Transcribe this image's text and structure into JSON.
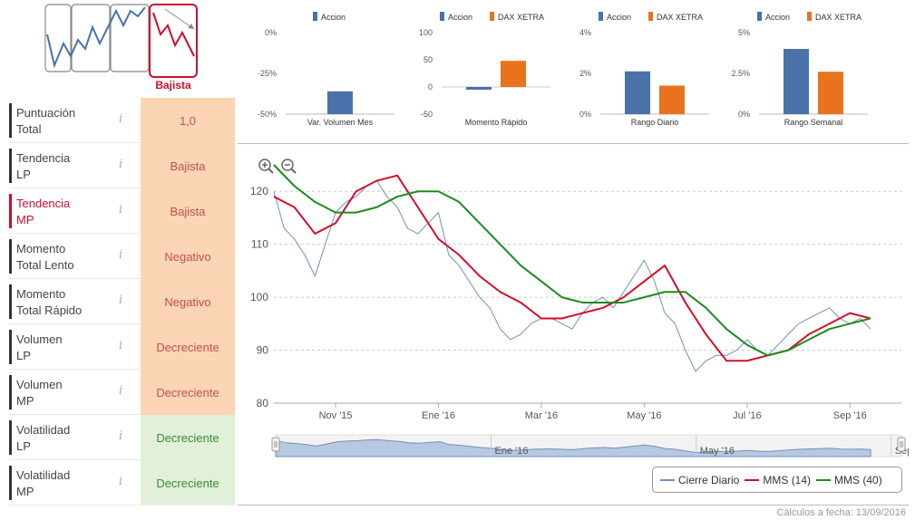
{
  "badge": {
    "label": "Bajista",
    "color": "#c8102e"
  },
  "rows": [
    {
      "line1": "Puntuación",
      "line2": "Total",
      "value": "1,0",
      "style": "neutral",
      "active": false
    },
    {
      "line1": "Tendencia",
      "line2": "LP",
      "value": "Bajista",
      "style": "orange",
      "active": false
    },
    {
      "line1": "Tendencia",
      "line2": "MP",
      "value": "Bajista",
      "style": "orange",
      "active": true
    },
    {
      "line1": "Momento",
      "line2": "Total Lento",
      "value": "Negativo",
      "style": "orange",
      "active": false
    },
    {
      "line1": "Momento",
      "line2": "Total Rápido",
      "value": "Negativo",
      "style": "orange",
      "active": false
    },
    {
      "line1": "Volumen",
      "line2": "LP",
      "value": "Decreciente",
      "style": "orange",
      "active": false
    },
    {
      "line1": "Volumen",
      "line2": "MP",
      "value": "Decreciente",
      "style": "orange",
      "active": false
    },
    {
      "line1": "Volatilidad",
      "line2": "LP",
      "value": "Decreciente",
      "style": "green",
      "active": false
    },
    {
      "line1": "Volatilidad",
      "line2": "MP",
      "value": "Decreciente",
      "style": "green",
      "active": false
    }
  ],
  "info_glyph": "i",
  "colors": {
    "accion": "#4a72a8",
    "dax": "#e8731c",
    "sma14": "#d0102a",
    "sma40": "#1e8a1e",
    "close": "#7090bb"
  },
  "mini_charts": [
    {
      "title": "Var. Volumen Mes",
      "legend": [
        "Accion"
      ],
      "ticks": [
        "0%",
        "-25%",
        "-50%"
      ],
      "tick_values": [
        0,
        -25,
        -50
      ],
      "values": [
        -36
      ],
      "ylim": [
        -50,
        0
      ]
    },
    {
      "title": "Momento Rápido",
      "legend": [
        "Accion",
        "DAX XETRA"
      ],
      "ticks": [
        "100",
        "50",
        "0",
        "-50"
      ],
      "tick_values": [
        100,
        50,
        0,
        -50
      ],
      "values": [
        -5,
        48
      ],
      "ylim": [
        -50,
        100
      ]
    },
    {
      "title": "Rango Diario",
      "legend": [
        "Accion",
        "DAX XETRA"
      ],
      "ticks": [
        "4%",
        "2%",
        "0%"
      ],
      "tick_values": [
        4,
        2,
        0
      ],
      "values": [
        2.1,
        1.4
      ],
      "ylim": [
        0,
        4
      ]
    },
    {
      "title": "Rango Semanal",
      "legend": [
        "Accion",
        "DAX XETRA"
      ],
      "ticks": [
        "5%",
        "2.5%",
        "0%"
      ],
      "tick_values": [
        5,
        2.5,
        0
      ],
      "values": [
        4.0,
        2.6
      ],
      "ylim": [
        0,
        5
      ]
    }
  ],
  "zoom": {
    "in_label": "+",
    "out_label": "−"
  },
  "chart_data": {
    "type": "line",
    "title": "",
    "ylim": [
      80,
      125
    ],
    "yticks": [
      80,
      90,
      100,
      110,
      120
    ],
    "xticks": [
      "Nov '15",
      "Ene '16",
      "Mar '16",
      "May '16",
      "Jul '16",
      "Sep '16"
    ],
    "xtick_positions": [
      1.2,
      3.2,
      5.2,
      7.2,
      9.2,
      11.2
    ],
    "xlim": [
      0,
      12.2
    ],
    "series": [
      {
        "name": "Cierre Diario",
        "x": [
          0,
          0.2,
          0.4,
          0.6,
          0.8,
          1.0,
          1.2,
          1.4,
          1.6,
          1.8,
          2.0,
          2.2,
          2.4,
          2.6,
          2.8,
          3.0,
          3.2,
          3.4,
          3.6,
          3.8,
          4.0,
          4.2,
          4.4,
          4.6,
          4.8,
          5.0,
          5.2,
          5.4,
          5.6,
          5.8,
          6.0,
          6.2,
          6.4,
          6.6,
          6.8,
          7.0,
          7.2,
          7.4,
          7.6,
          7.8,
          8.0,
          8.2,
          8.4,
          8.6,
          8.8,
          9.0,
          9.2,
          9.4,
          9.6,
          9.8,
          10.0,
          10.2,
          10.4,
          10.6,
          10.8,
          11.0,
          11.2,
          11.4,
          11.6
        ],
        "values": [
          120,
          113,
          111,
          108,
          104,
          110,
          116,
          118,
          119,
          121,
          122,
          119,
          117,
          113,
          112,
          114,
          116,
          108,
          106,
          103,
          100,
          98,
          94,
          92,
          93,
          95,
          96,
          96,
          95,
          94,
          97,
          99,
          100,
          98,
          101,
          104,
          107,
          103,
          97,
          95,
          90,
          86,
          88,
          89,
          89,
          90,
          92,
          90,
          89,
          91,
          93,
          95,
          96,
          97,
          98,
          96,
          95,
          96,
          94
        ]
      },
      {
        "name": "MMS (14)",
        "x": [
          0,
          0.4,
          0.8,
          1.2,
          1.6,
          2.0,
          2.4,
          2.8,
          3.2,
          3.6,
          4.0,
          4.4,
          4.8,
          5.2,
          5.6,
          6.0,
          6.4,
          6.8,
          7.2,
          7.6,
          8.0,
          8.4,
          8.8,
          9.2,
          9.6,
          10.0,
          10.4,
          10.8,
          11.2,
          11.6
        ],
        "values": [
          119,
          117,
          112,
          114,
          120,
          122,
          123,
          117,
          111,
          108,
          104,
          101,
          99,
          96,
          96,
          97,
          98,
          100,
          103,
          106,
          99,
          93,
          88,
          88,
          89,
          90,
          93,
          95,
          97,
          96
        ]
      },
      {
        "name": "MMS (40)",
        "x": [
          0,
          0.4,
          0.8,
          1.2,
          1.6,
          2.0,
          2.4,
          2.8,
          3.2,
          3.6,
          4.0,
          4.4,
          4.8,
          5.2,
          5.6,
          6.0,
          6.4,
          6.8,
          7.2,
          7.6,
          8.0,
          8.4,
          8.8,
          9.2,
          9.6,
          10.0,
          10.4,
          10.8,
          11.2,
          11.6
        ],
        "values": [
          125,
          121,
          118,
          116,
          116,
          117,
          119,
          120,
          120,
          118,
          114,
          110,
          106,
          103,
          100,
          99,
          99,
          99,
          100,
          101,
          101,
          98,
          94,
          91,
          89,
          90,
          92,
          94,
          95,
          96
        ]
      }
    ],
    "navigator_labels": [
      "Ene '16",
      "May '16",
      "Sep '"
    ]
  },
  "legend": {
    "items": [
      "Cierre Diario",
      "MMS (14)",
      "MMS (40)"
    ]
  },
  "footer": {
    "calc_text": "Cálculos a fecha: 13/09/2016"
  }
}
